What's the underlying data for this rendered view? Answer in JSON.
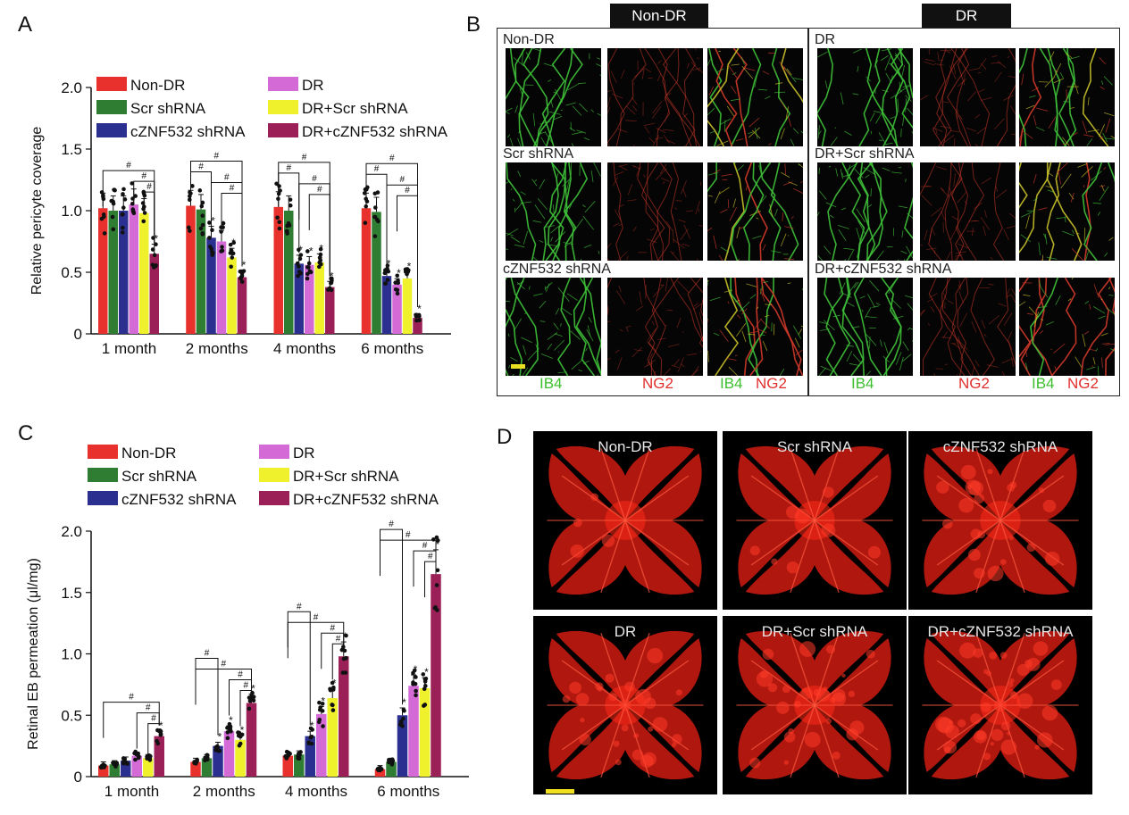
{
  "panels": {
    "A": "A",
    "B": "B",
    "C": "C",
    "D": "D"
  },
  "legend_labels": [
    "Non-DR",
    "Scr shRNA",
    "cZNF532 shRNA",
    "DR",
    "DR+Scr shRNA",
    "DR+cZNF532 shRNA"
  ],
  "group_colors": [
    "#e8312d",
    "#2e7d32",
    "#2b2f8f",
    "#d46ad6",
    "#eef12c",
    "#9b2058"
  ],
  "sig_symbol": "#",
  "star_symbol": "*",
  "chart_data": [
    {
      "type": "bar",
      "title": "",
      "ylabel": "Relative pericyte coverage",
      "xlabel": "",
      "ylim": [
        0,
        2.0
      ],
      "yticks": [
        "0",
        "0.5",
        "1.0",
        "1.5",
        "2.0"
      ],
      "categories": [
        "1 month",
        "2 months",
        "4 months",
        "6 months"
      ],
      "series": [
        {
          "name": "Non-DR",
          "values": [
            1.02,
            1.04,
            1.03,
            1.02
          ]
        },
        {
          "name": "Scr shRNA",
          "values": [
            1.0,
            1.01,
            1.0,
            0.99
          ]
        },
        {
          "name": "cZNF532 shRNA",
          "values": [
            1.0,
            0.78,
            0.57,
            0.47
          ]
        },
        {
          "name": "DR",
          "values": [
            1.05,
            0.75,
            0.56,
            0.4
          ]
        },
        {
          "name": "DR+Scr shRNA",
          "values": [
            0.98,
            0.62,
            0.58,
            0.45
          ]
        },
        {
          "name": "DR+cZNF532 shRNA",
          "values": [
            0.65,
            0.46,
            0.38,
            0.13
          ]
        }
      ]
    },
    {
      "type": "bar",
      "title": "",
      "ylabel": "Retinal EB permeation (μl/mg)",
      "xlabel": "",
      "ylim": [
        0,
        2.0
      ],
      "yticks": [
        "0",
        "0.5",
        "1.0",
        "1.5",
        "2.0"
      ],
      "categories": [
        "1 month",
        "2 months",
        "4 months",
        "6 months"
      ],
      "series": [
        {
          "name": "Non-DR",
          "values": [
            0.09,
            0.12,
            0.17,
            0.06
          ]
        },
        {
          "name": "Scr shRNA",
          "values": [
            0.1,
            0.15,
            0.18,
            0.12
          ]
        },
        {
          "name": "cZNF532 shRNA",
          "values": [
            0.13,
            0.25,
            0.33,
            0.5
          ]
        },
        {
          "name": "DR",
          "values": [
            0.17,
            0.37,
            0.51,
            0.74
          ]
        },
        {
          "name": "DR+Scr shRNA",
          "values": [
            0.15,
            0.3,
            0.64,
            0.72
          ]
        },
        {
          "name": "DR+cZNF532 shRNA",
          "values": [
            0.33,
            0.6,
            0.98,
            1.65
          ]
        }
      ]
    }
  ],
  "panel_b": {
    "headers": [
      "Non-DR",
      "DR"
    ],
    "rows_left": [
      "Non-DR",
      "Scr shRNA",
      "cZNF532 shRNA"
    ],
    "rows_right": [
      "DR",
      "DR+Scr shRNA",
      "DR+cZNF532 shRNA"
    ],
    "footer": {
      "ib4": "IB4",
      "ng2": "NG2"
    }
  },
  "panel_d": {
    "labels": [
      "Non-DR",
      "Scr shRNA",
      "cZNF532 shRNA",
      "DR",
      "DR+Scr shRNA",
      "DR+cZNF532 shRNA"
    ]
  }
}
